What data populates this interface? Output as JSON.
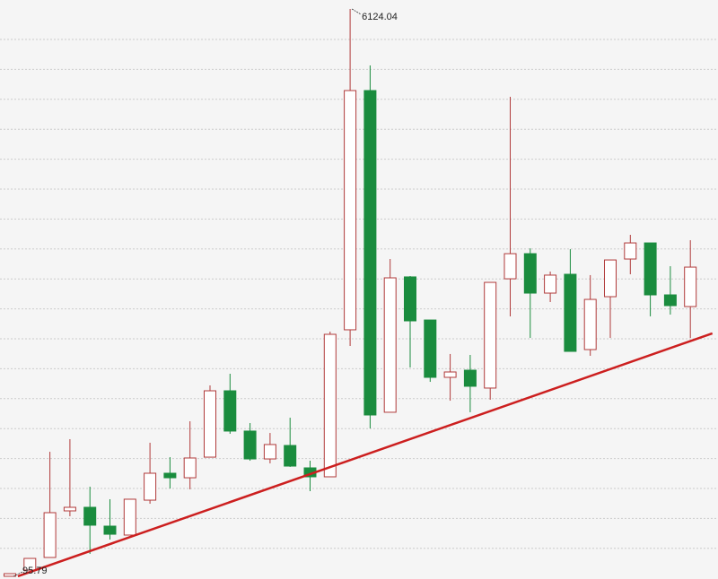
{
  "chart_data": {
    "type": "candlestick",
    "title": "",
    "xlabel": "",
    "ylabel": "",
    "ylim": [
      95.79,
      6124.04
    ],
    "grid": {
      "horizontal": true,
      "style": "dotted"
    },
    "colors": {
      "up": "#b03a3a",
      "up_fill": "#ffffff",
      "down": "#1a8c3e",
      "trendline": "#cc1f1f",
      "grid": "#cccccc",
      "background": "#f5f5f5"
    },
    "candles": [
      {
        "o": 96,
        "h": 124,
        "l": 95.79,
        "c": 124
      },
      {
        "o": 162,
        "h": 286,
        "l": 162,
        "c": 286
      },
      {
        "o": 296,
        "h": 1419,
        "l": 296,
        "c": 772
      },
      {
        "o": 791,
        "h": 1553,
        "l": 734,
        "c": 829
      },
      {
        "o": 829,
        "h": 1048,
        "l": 334,
        "c": 639
      },
      {
        "o": 629,
        "h": 915,
        "l": 486,
        "c": 543
      },
      {
        "o": 534,
        "h": 915,
        "l": 534,
        "c": 915
      },
      {
        "o": 905,
        "h": 1515,
        "l": 867,
        "c": 1191
      },
      {
        "o": 1191,
        "h": 1362,
        "l": 1029,
        "c": 1143
      },
      {
        "o": 1143,
        "h": 1743,
        "l": 1020,
        "c": 1353
      },
      {
        "o": 1362,
        "h": 2124,
        "l": 1362,
        "c": 2067
      },
      {
        "o": 2067,
        "h": 2248,
        "l": 1610,
        "c": 1639
      },
      {
        "o": 1639,
        "h": 1724,
        "l": 1324,
        "c": 1343
      },
      {
        "o": 1343,
        "h": 1619,
        "l": 1296,
        "c": 1496
      },
      {
        "o": 1486,
        "h": 1781,
        "l": 1258,
        "c": 1267
      },
      {
        "o": 1248,
        "h": 1324,
        "l": 1000,
        "c": 1153
      },
      {
        "o": 1153,
        "h": 2696,
        "l": 1153,
        "c": 2667
      },
      {
        "o": 2715,
        "h": 6124.04,
        "l": 2543,
        "c": 5257
      },
      {
        "o": 5257,
        "h": 5524,
        "l": 1667,
        "c": 1810
      },
      {
        "o": 1839,
        "h": 3467,
        "l": 1839,
        "c": 3267
      },
      {
        "o": 3277,
        "h": 3286,
        "l": 2315,
        "c": 2810
      },
      {
        "o": 2819,
        "h": 2819,
        "l": 2162,
        "c": 2210
      },
      {
        "o": 2210,
        "h": 2458,
        "l": 1962,
        "c": 2267
      },
      {
        "o": 2286,
        "h": 2448,
        "l": 1839,
        "c": 2115
      },
      {
        "o": 2096,
        "h": 3219,
        "l": 1972,
        "c": 3219
      },
      {
        "o": 3257,
        "h": 5191,
        "l": 2858,
        "c": 3524
      },
      {
        "o": 3524,
        "h": 3581,
        "l": 2629,
        "c": 3105
      },
      {
        "o": 3105,
        "h": 3334,
        "l": 3010,
        "c": 3296
      },
      {
        "o": 3305,
        "h": 3572,
        "l": 2486,
        "c": 2486
      },
      {
        "o": 2505,
        "h": 3296,
        "l": 2439,
        "c": 3038
      },
      {
        "o": 3067,
        "h": 3457,
        "l": 2629,
        "c": 3457
      },
      {
        "o": 3467,
        "h": 3724,
        "l": 3305,
        "c": 3638
      },
      {
        "o": 3638,
        "h": 3638,
        "l": 2858,
        "c": 3086
      },
      {
        "o": 3086,
        "h": 3391,
        "l": 2877,
        "c": 2972
      },
      {
        "o": 2962,
        "h": 3667,
        "l": 2629,
        "c": 3381
      }
    ],
    "trendline": [
      [
        1.4,
        96
      ],
      [
        36.1,
        2677
      ]
    ],
    "annotations": {
      "max": {
        "label": "6124.04",
        "candle": 18
      },
      "min": {
        "label": "95.79",
        "candle": 1
      }
    }
  }
}
